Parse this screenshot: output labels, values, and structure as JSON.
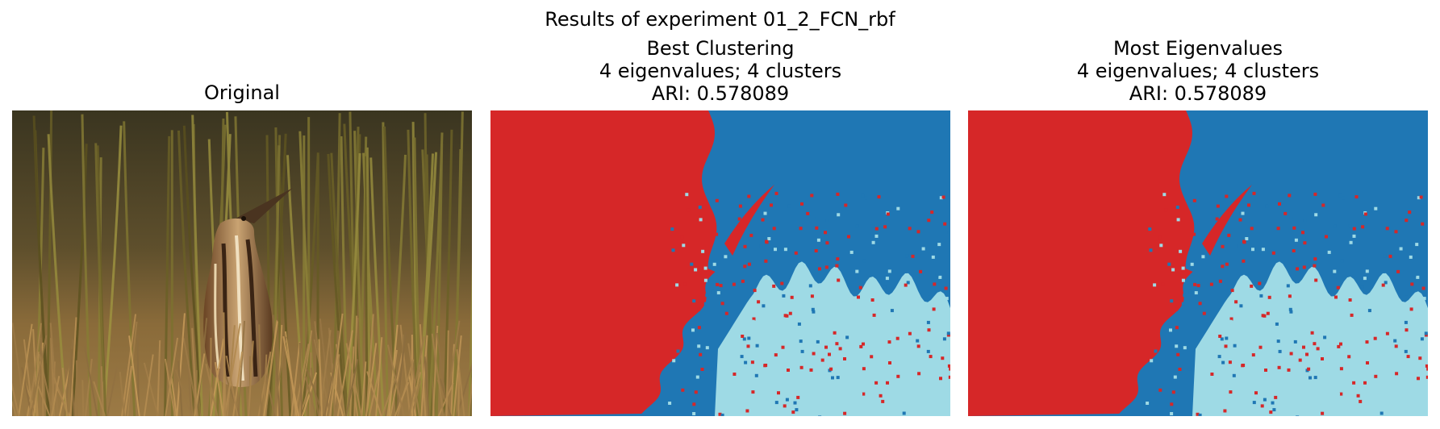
{
  "figure": {
    "suptitle": "Results of experiment 01_2_FCN_rbf"
  },
  "panels": [
    {
      "title_lines": [
        "Original"
      ],
      "image": "bittern-in-grass-photo"
    },
    {
      "title_lines": [
        "Best Clustering",
        "4 eigenvalues; 4 clusters",
        "ARI: 0.578089"
      ],
      "image": "segmentation-map"
    },
    {
      "title_lines": [
        "Most Eigenvalues",
        "4 eigenvalues; 4 clusters",
        "ARI: 0.578089"
      ],
      "image": "segmentation-map"
    }
  ],
  "colors": {
    "cluster_red": "#d62728",
    "cluster_blue": "#1f77b4",
    "cluster_lightblue": "#9edae5",
    "photo_grass": "#6f5a30"
  }
}
